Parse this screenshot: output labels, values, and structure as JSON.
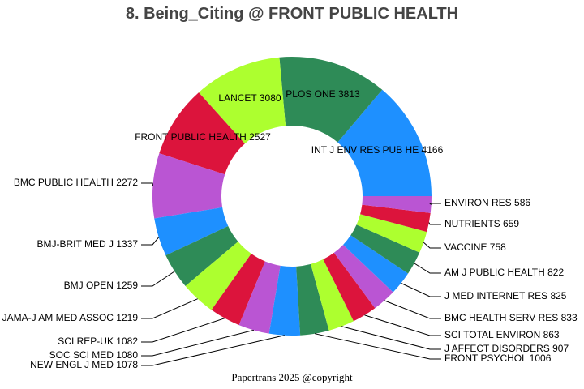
{
  "title": "8. Being_Citing @ FRONT PUBLIC HEALTH",
  "footer": "Papertrans 2025 @copyright",
  "palette": [
    "#1E90FF",
    "#2E8B57",
    "#ADFF2F",
    "#DC143C",
    "#BA55D3"
  ],
  "chart_data": {
    "type": "pie",
    "subtype": "donut",
    "title": "8. Being_Citing @ FRONT PUBLIC HEALTH",
    "start_angle_deg": 0,
    "direction": "counterclockwise",
    "labels": [
      "INT J ENV RES PUB HE",
      "PLOS ONE",
      "LANCET",
      "FRONT PUBLIC HEALTH",
      "BMC PUBLIC HEALTH",
      "BMJ-BRIT MED J",
      "BMJ OPEN",
      "JAMA-J AM MED ASSOC",
      "SCI REP-UK",
      "SOC SCI MED",
      "NEW ENGL J MED",
      "FRONT PSYCHOL",
      "J AFFECT DISORDERS",
      "SCI TOTAL ENVIRON",
      "BMC HEALTH SERV RES",
      "J MED INTERNET RES",
      "AM J PUBLIC HEALTH",
      "VACCINE",
      "NUTRIENTS",
      "ENVIRON RES"
    ],
    "values": [
      4166,
      3813,
      3080,
      2527,
      2272,
      1337,
      1259,
      1219,
      1082,
      1080,
      1078,
      1006,
      907,
      863,
      833,
      825,
      822,
      758,
      659,
      586
    ],
    "total": 30172
  },
  "slice_labels": [
    "INT J ENV RES PUB HE 4166",
    "PLOS ONE 3813",
    "LANCET 3080",
    "FRONT PUBLIC HEALTH 2527",
    "BMC PUBLIC HEALTH 2272",
    "BMJ-BRIT MED J 1337",
    "BMJ OPEN 1259",
    "JAMA-J AM MED ASSOC 1219",
    "SCI REP-UK 1082",
    "SOC SCI MED 1080",
    "NEW ENGL J MED 1078",
    "FRONT PSYCHOL 1006",
    "J AFFECT DISORDERS 907",
    "SCI TOTAL ENVIRON 863",
    "BMC HEALTH SERV RES 833",
    "J MED INTERNET RES 825",
    "AM J PUBLIC HEALTH 822",
    "VACCINE 758",
    "NUTRIENTS 659",
    "ENVIRON RES 586"
  ]
}
